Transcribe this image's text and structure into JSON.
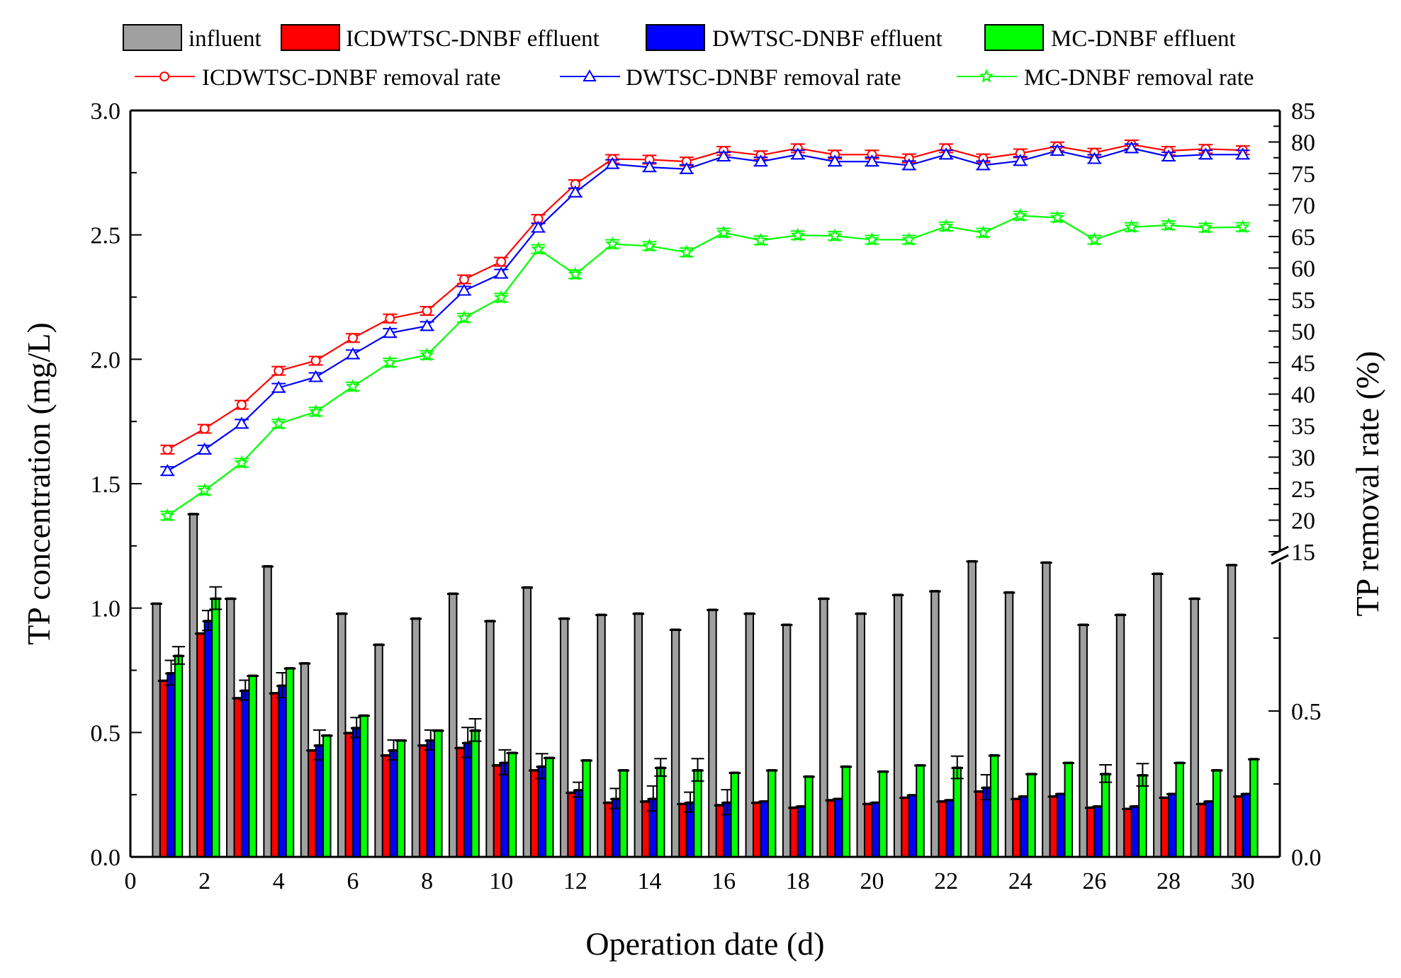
{
  "chart_data": {
    "type": "bar+line",
    "xlabel": "Operation date (d)",
    "ylabel": "TP concentration (mg/L)",
    "y2label": "TP removal rate (%)",
    "xlim": [
      0,
      31
    ],
    "xticks": [
      0,
      2,
      4,
      6,
      8,
      10,
      12,
      14,
      16,
      18,
      20,
      22,
      24,
      26,
      28,
      30
    ],
    "ylim": [
      0,
      3.0
    ],
    "yticks": [
      "0.0",
      "0.5",
      "1.0",
      "1.5",
      "2.0",
      "2.5",
      "3.0"
    ],
    "y2_upper_lim": [
      15,
      85
    ],
    "y2_upper_ticks": [
      15,
      20,
      25,
      30,
      35,
      40,
      45,
      50,
      55,
      60,
      65,
      70,
      75,
      80,
      85
    ],
    "y2_lower_ticks": [
      "0.0",
      "0.5"
    ],
    "y2_axis_break": true,
    "grid": false,
    "legend_placement": "top",
    "x": [
      1,
      2,
      3,
      4,
      5,
      6,
      7,
      8,
      9,
      10,
      11,
      12,
      13,
      14,
      15,
      16,
      17,
      18,
      19,
      20,
      21,
      22,
      23,
      24,
      25,
      26,
      27,
      28,
      29,
      30
    ],
    "bar_series": [
      {
        "name": "influent",
        "color": "#a0a0a0",
        "values": [
          1.02,
          1.38,
          1.04,
          1.17,
          0.78,
          0.98,
          0.855,
          0.96,
          1.06,
          0.95,
          1.085,
          0.96,
          0.975,
          0.98,
          0.915,
          0.995,
          0.98,
          0.935,
          1.04,
          0.98,
          1.055,
          1.07,
          1.19,
          1.065,
          1.185,
          0.935,
          0.975,
          1.14,
          1.04,
          1.175
        ],
        "errors": [
          0,
          0,
          0,
          0,
          0,
          0,
          0,
          0,
          0,
          0,
          0,
          0,
          0,
          0,
          0,
          0,
          0,
          0,
          0,
          0,
          0,
          0,
          0,
          0,
          0,
          0,
          0,
          0,
          0,
          0
        ]
      },
      {
        "name": "ICDWTSC-DNBF effluent",
        "color": "#ff0000",
        "values": [
          0.71,
          0.9,
          0.64,
          0.66,
          0.43,
          0.5,
          0.41,
          0.45,
          0.44,
          0.37,
          0.35,
          0.26,
          0.22,
          0.225,
          0.215,
          0.21,
          0.22,
          0.2,
          0.23,
          0.215,
          0.24,
          0.225,
          0.265,
          0.235,
          0.245,
          0.2,
          0.195,
          0.24,
          0.215,
          0.245
        ],
        "errors": [
          0,
          0,
          0,
          0,
          0,
          0,
          0,
          0,
          0,
          0,
          0,
          0,
          0,
          0,
          0,
          0,
          0,
          0,
          0,
          0,
          0,
          0,
          0,
          0,
          0,
          0,
          0,
          0,
          0,
          0
        ]
      },
      {
        "name": "DWTSC-DNBF effluent",
        "color": "#0000ff",
        "values": [
          0.74,
          0.95,
          0.67,
          0.69,
          0.45,
          0.52,
          0.43,
          0.47,
          0.46,
          0.38,
          0.365,
          0.27,
          0.235,
          0.235,
          0.22,
          0.22,
          0.225,
          0.205,
          0.235,
          0.22,
          0.25,
          0.23,
          0.28,
          0.245,
          0.255,
          0.205,
          0.205,
          0.255,
          0.225,
          0.255
        ],
        "errors": [
          0.05,
          0.04,
          0.04,
          0.05,
          0.06,
          0.04,
          0.04,
          0.04,
          0.06,
          0.05,
          0.05,
          0.03,
          0.04,
          0.05,
          0.04,
          0.05,
          0.005,
          0.005,
          0.005,
          0.005,
          0.005,
          0.005,
          0.05,
          0.005,
          0.005,
          0.005,
          0.005,
          0.005,
          0.005,
          0.005
        ]
      },
      {
        "name": "MC-DNBF effluent",
        "color": "#00ff00",
        "values": [
          0.81,
          1.04,
          0.73,
          0.76,
          0.49,
          0.57,
          0.47,
          0.51,
          0.51,
          0.42,
          0.4,
          0.39,
          0.35,
          0.36,
          0.35,
          0.34,
          0.35,
          0.325,
          0.365,
          0.345,
          0.37,
          0.36,
          0.41,
          0.335,
          0.38,
          0.335,
          0.33,
          0.38,
          0.35,
          0.395
        ],
        "errors": [
          0.035,
          0.045,
          0.005,
          0.005,
          0.005,
          0.005,
          0.005,
          0.005,
          0.045,
          0.005,
          0.005,
          0.005,
          0.005,
          0.035,
          0.045,
          0.005,
          0.005,
          0.005,
          0.005,
          0.005,
          0.005,
          0.045,
          0.005,
          0.005,
          0.005,
          0.035,
          0.045,
          0.005,
          0.005,
          0.005
        ]
      }
    ],
    "line_series": [
      {
        "name": "ICDWTSC-DNBF  removal rate",
        "color": "#ff0000",
        "marker": "circle",
        "values": [
          31.2,
          34.5,
          38.3,
          43.7,
          45.3,
          48.9,
          52.0,
          53.2,
          58.2,
          61.0,
          67.8,
          73.3,
          77.3,
          77.2,
          76.9,
          78.6,
          77.9,
          79.0,
          78.0,
          78.0,
          77.4,
          79.0,
          77.4,
          78.2,
          79.3,
          78.3,
          79.6,
          78.6,
          78.9,
          78.7
        ]
      },
      {
        "name": "DWTSC-DNBF  removal rate",
        "color": "#0000ff",
        "marker": "triangle",
        "values": [
          27.8,
          31.2,
          35.3,
          41.0,
          42.7,
          46.3,
          49.7,
          50.8,
          56.4,
          59.1,
          66.4,
          72.0,
          76.5,
          76.0,
          75.7,
          77.7,
          76.9,
          78.0,
          76.9,
          76.9,
          76.3,
          78.0,
          76.3,
          77.0,
          78.6,
          77.3,
          79.0,
          77.7,
          78.0,
          78.0
        ]
      },
      {
        "name": "MC-DNBF  removal rate",
        "color": "#00ff00",
        "marker": "star",
        "values": [
          20.7,
          24.7,
          29.1,
          35.3,
          37.2,
          41.2,
          45.0,
          46.2,
          52.1,
          55.3,
          63.0,
          59.0,
          63.8,
          63.5,
          62.5,
          65.6,
          64.4,
          65.2,
          65.1,
          64.5,
          64.5,
          66.6,
          65.6,
          68.3,
          68.0,
          64.5,
          66.5,
          66.8,
          66.4,
          66.5
        ]
      }
    ]
  }
}
